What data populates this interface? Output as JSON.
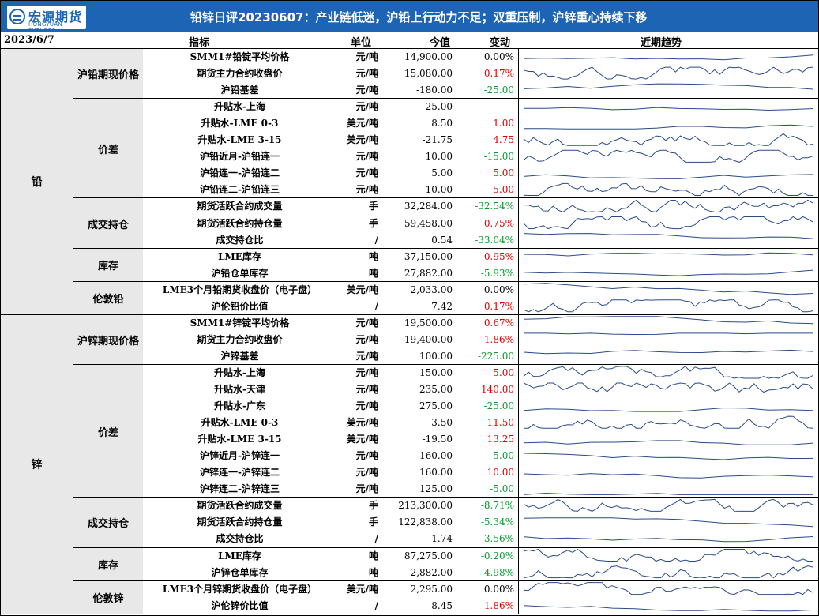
{
  "header": {
    "logo_cn": "宏源期货",
    "logo_en": "HONGYUAN FUTURES",
    "title": "铅锌日评20230607：产业链低迷，沪铅上行动力不足；双重压制，沪锌重心持续下移"
  },
  "columns": {
    "date": "2023/6/7",
    "indicator": "指标",
    "unit": "单位",
    "value": "今值",
    "change": "变动",
    "trend": "近期趋势"
  },
  "groups": [
    {
      "name": "铅",
      "subgroups": [
        {
          "name": "沪铅期现价格",
          "rows": [
            {
              "name": "SMM1#铅锭平均价格",
              "unit": "元/吨",
              "value": "14,900.00",
              "change": "0.00%"
            },
            {
              "name": "期货主力合约收盘价",
              "unit": "元/吨",
              "value": "15,080.00",
              "change": "0.17%"
            },
            {
              "name": "沪铅基差",
              "unit": "元/吨",
              "value": "-180.00",
              "change": "-25.00"
            }
          ]
        },
        {
          "name": "价差",
          "rows": [
            {
              "name": "升贴水-上海",
              "unit": "元/吨",
              "value": "25.00",
              "change": "-"
            },
            {
              "name": "升贴水-LME 0-3",
              "unit": "美元/吨",
              "value": "8.50",
              "change": "1.00"
            },
            {
              "name": "升贴水-LME 3-15",
              "unit": "美元/吨",
              "value": "-21.75",
              "change": "4.75"
            },
            {
              "name": "沪铅近月-沪铅连一",
              "unit": "元/吨",
              "value": "10.00",
              "change": "-15.00"
            },
            {
              "name": "沪铅连一-沪铅连二",
              "unit": "元/吨",
              "value": "5.00",
              "change": "5.00"
            },
            {
              "name": "沪铅连二-沪铅连三",
              "unit": "元/吨",
              "value": "10.00",
              "change": "5.00"
            }
          ]
        },
        {
          "name": "成交持仓",
          "rows": [
            {
              "name": "期货活跃合约成交量",
              "unit": "手",
              "value": "32,284.00",
              "change": "-32.54%"
            },
            {
              "name": "期货活跃合约持仓量",
              "unit": "手",
              "value": "59,458.00",
              "change": "0.75%"
            },
            {
              "name": "成交持仓比",
              "unit": "/",
              "value": "0.54",
              "change": "-33.04%"
            }
          ]
        },
        {
          "name": "库存",
          "rows": [
            {
              "name": "LME库存",
              "unit": "吨",
              "value": "37,150.00",
              "change": "0.95%"
            },
            {
              "name": "沪铅仓单库存",
              "unit": "吨",
              "value": "27,882.00",
              "change": "-5.93%"
            }
          ]
        },
        {
          "name": "伦敦铅",
          "rows": [
            {
              "name": "LME3个月铅期货收盘价（电子盘）",
              "unit": "美元/吨",
              "value": "2,033.00",
              "change": "0.00%"
            },
            {
              "name": "沪伦铅价比值",
              "unit": "/",
              "value": "7.42",
              "change": "0.17%"
            }
          ]
        }
      ]
    },
    {
      "name": "锌",
      "subgroups": [
        {
          "name": "沪锌期现价格",
          "rows": [
            {
              "name": "SMM1#锌锭平均价格",
              "unit": "元/吨",
              "value": "19,500.00",
              "change": "0.67%"
            },
            {
              "name": "期货主力合约收盘价",
              "unit": "元/吨",
              "value": "19,400.00",
              "change": "1.86%"
            },
            {
              "name": "沪锌基差",
              "unit": "元/吨",
              "value": "100.00",
              "change": "-225.00"
            }
          ]
        },
        {
          "name": "价差",
          "rows": [
            {
              "name": "升贴水-上海",
              "unit": "元/吨",
              "value": "150.00",
              "change": "5.00"
            },
            {
              "name": "升贴水-天津",
              "unit": "元/吨",
              "value": "235.00",
              "change": "140.00"
            },
            {
              "name": "升贴水-广东",
              "unit": "元/吨",
              "value": "275.00",
              "change": "-25.00"
            },
            {
              "name": "升贴水-LME 0-3",
              "unit": "美元/吨",
              "value": "3.50",
              "change": "11.50"
            },
            {
              "name": "升贴水-LME 3-15",
              "unit": "美元/吨",
              "value": "-19.50",
              "change": "13.25"
            },
            {
              "name": "沪锌近月-沪锌连一",
              "unit": "元/吨",
              "value": "160.00",
              "change": "-5.00"
            },
            {
              "name": "沪锌连一-沪锌连二",
              "unit": "元/吨",
              "value": "160.00",
              "change": "10.00"
            },
            {
              "name": "沪锌连二-沪锌连三",
              "unit": "元/吨",
              "value": "125.00",
              "change": "-5.00"
            }
          ]
        },
        {
          "name": "成交持仓",
          "rows": [
            {
              "name": "期货活跃合约成交量",
              "unit": "手",
              "value": "213,300.00",
              "change": "-8.71%"
            },
            {
              "name": "期货活跃合约持仓量",
              "unit": "手",
              "value": "122,838.00",
              "change": "-5.34%"
            },
            {
              "name": "成交持仓比",
              "unit": "/",
              "value": "1.74",
              "change": "-3.56%"
            }
          ]
        },
        {
          "name": "库存",
          "rows": [
            {
              "name": "LME库存",
              "unit": "吨",
              "value": "87,275.00",
              "change": "-0.20%"
            },
            {
              "name": "沪锌仓单库存",
              "unit": "吨",
              "value": "2,882.00",
              "change": "-4.98%"
            }
          ]
        },
        {
          "name": "伦敦锌",
          "rows": [
            {
              "name": "LME3个月锌期货收盘价（电子盘）",
              "unit": "美元/吨",
              "value": "2,295.00",
              "change": "0.00%"
            },
            {
              "name": "沪伦锌价比值",
              "unit": "/",
              "value": "8.45",
              "change": "1.86%"
            }
          ]
        }
      ]
    }
  ]
}
